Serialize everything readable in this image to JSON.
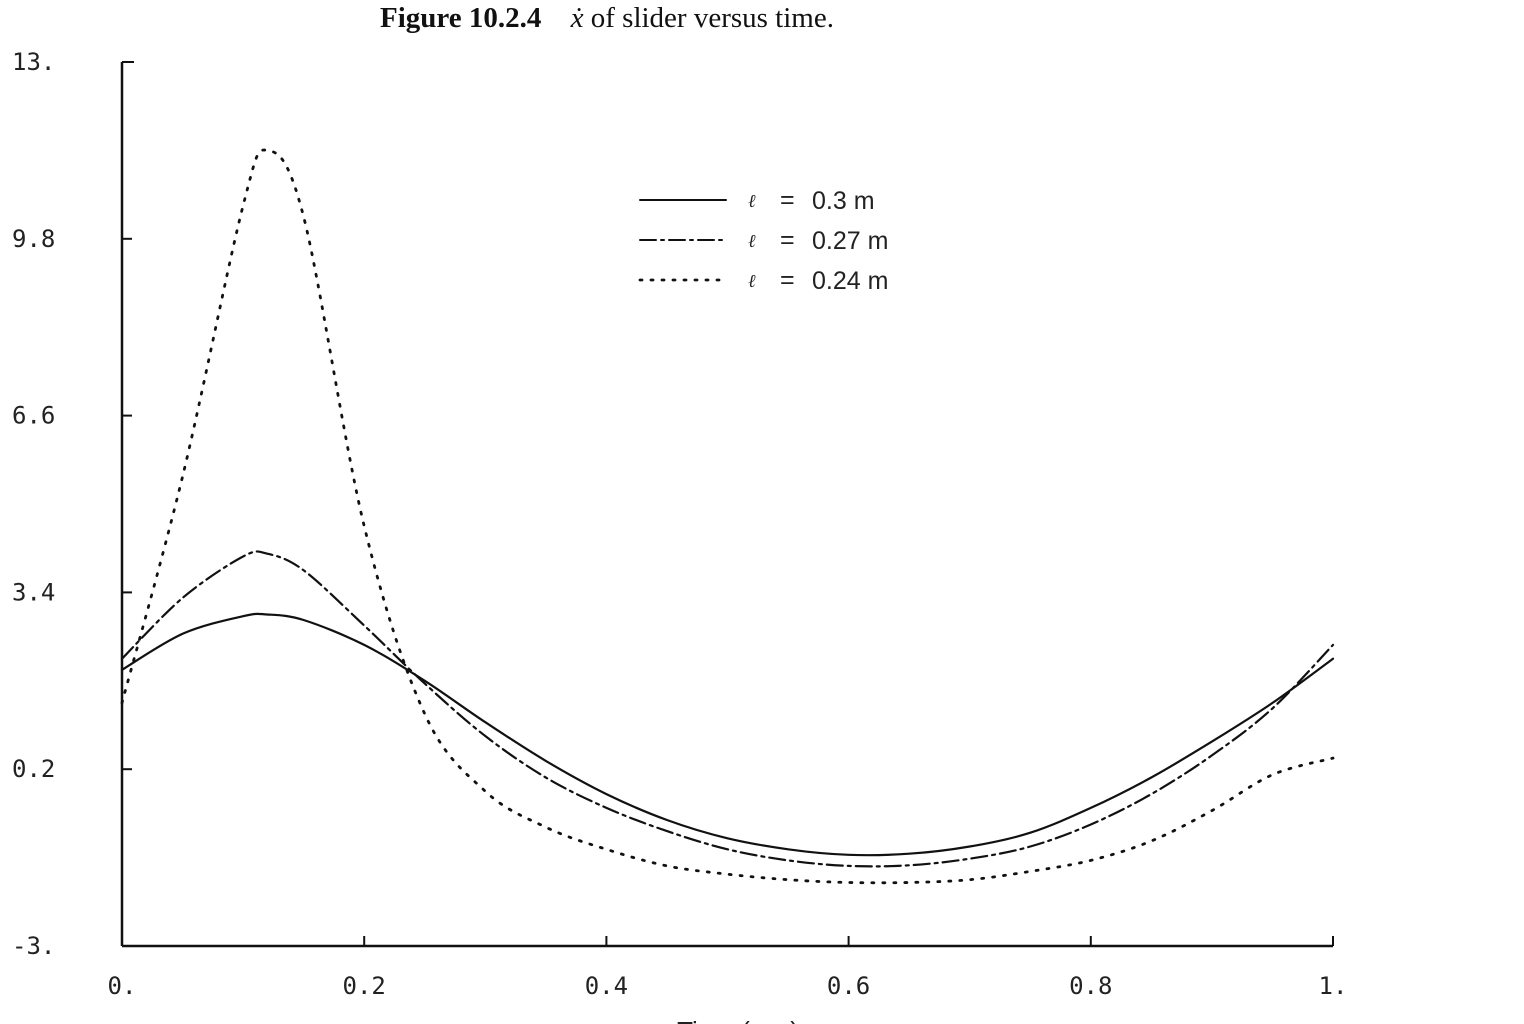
{
  "caption": {
    "figure_number": "Figure 10.2.4",
    "xdot_symbol": "ẋ",
    "text": "of slider versus time."
  },
  "chart_data": {
    "type": "line",
    "title": "Figure 10.2.4 ẋ of slider versus time.",
    "xlabel": "Time (sec)",
    "ylabel": "",
    "xlim": [
      0,
      1
    ],
    "ylim": [
      -3,
      13
    ],
    "x_ticks": [
      0,
      0.2,
      0.4,
      0.6,
      0.8,
      1
    ],
    "x_tick_labels": [
      "0.",
      "0.2",
      "0.4",
      "0.6",
      "0.8",
      "1."
    ],
    "y_ticks": [
      -3,
      0.2,
      3.4,
      6.6,
      9.8,
      13
    ],
    "y_tick_labels": [
      "-3.",
      "0.2",
      "3.4",
      "6.6",
      "9.8",
      "13."
    ],
    "grid": false,
    "legend_position": "top-center",
    "x": [
      0,
      0.05,
      0.1,
      0.12,
      0.15,
      0.2,
      0.25,
      0.3,
      0.35,
      0.4,
      0.45,
      0.5,
      0.55,
      0.6,
      0.65,
      0.7,
      0.75,
      0.8,
      0.85,
      0.9,
      0.95,
      1.0
    ],
    "series": [
      {
        "name": "ℓ = 0.3 m",
        "style": "solid",
        "values": [
          2.0,
          2.65,
          2.97,
          3.0,
          2.9,
          2.45,
          1.8,
          1.05,
          0.35,
          -0.25,
          -0.72,
          -1.05,
          -1.25,
          -1.35,
          -1.33,
          -1.2,
          -0.95,
          -0.5,
          0.05,
          0.7,
          1.4,
          2.2
        ]
      },
      {
        "name": "ℓ = 0.27 m",
        "style": "dash-dot",
        "values": [
          2.2,
          3.3,
          4.05,
          4.1,
          3.8,
          2.8,
          1.75,
          0.8,
          0.05,
          -0.5,
          -0.92,
          -1.25,
          -1.45,
          -1.55,
          -1.54,
          -1.42,
          -1.2,
          -0.8,
          -0.25,
          0.45,
          1.3,
          2.45
        ]
      },
      {
        "name": "ℓ = 0.24 m",
        "style": "dotted",
        "values": [
          1.4,
          5.5,
          10.4,
          11.4,
          10.2,
          4.6,
          1.2,
          -0.2,
          -0.85,
          -1.25,
          -1.55,
          -1.7,
          -1.8,
          -1.85,
          -1.85,
          -1.8,
          -1.65,
          -1.45,
          -1.1,
          -0.55,
          0.1,
          0.4
        ]
      }
    ]
  },
  "legend": {
    "symbol": "ℓ",
    "eq": "=",
    "entries": [
      "0.3 m",
      "0.27 m",
      "0.24 m"
    ]
  }
}
